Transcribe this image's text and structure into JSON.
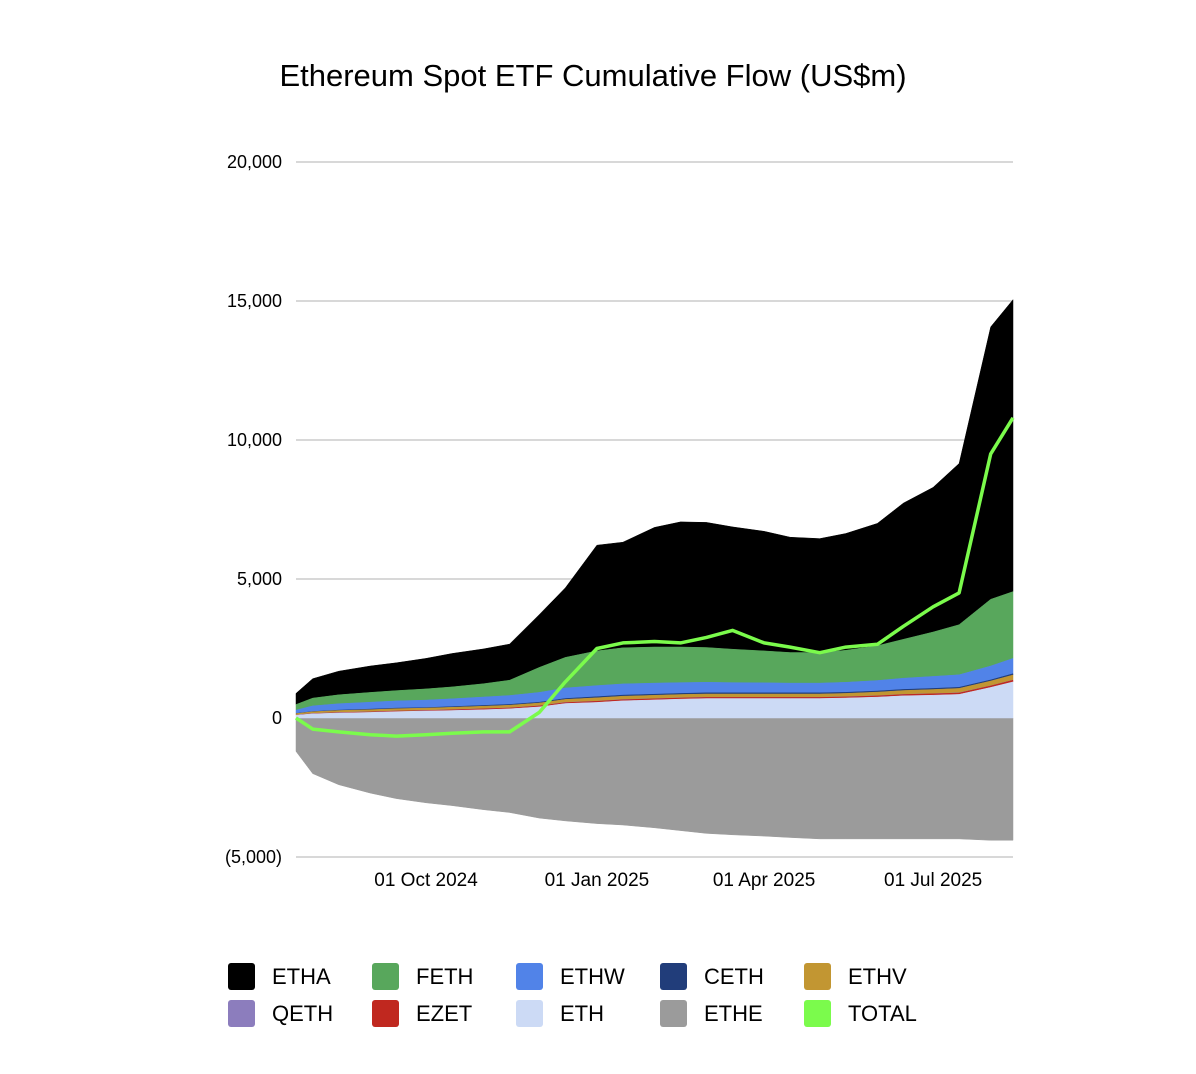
{
  "chart_data": {
    "type": "area",
    "stacked": true,
    "title": "Ethereum Spot ETF Cumulative Flow (US$m)",
    "xlabel": "",
    "ylabel": "",
    "ylim": [
      -5000,
      20000
    ],
    "xlim": [
      "2024-07-23",
      "2025-08-13"
    ],
    "yticks": [
      {
        "value": 20000,
        "label": "20,000"
      },
      {
        "value": 15000,
        "label": "15,000"
      },
      {
        "value": 10000,
        "label": "10,000"
      },
      {
        "value": 5000,
        "label": "5,000"
      },
      {
        "value": 0,
        "label": "0"
      },
      {
        "value": -5000,
        "label": "(5,000)"
      }
    ],
    "xticks": [
      {
        "date": "2024-10-01",
        "label": "01 Oct 2024"
      },
      {
        "date": "2025-01-01",
        "label": "01 Jan 2025"
      },
      {
        "date": "2025-04-01",
        "label": "01 Apr 2025"
      },
      {
        "date": "2025-07-01",
        "label": "01 Jul 2025"
      }
    ],
    "grid": true,
    "legend_position": "bottom",
    "x": [
      "2024-07-23",
      "2024-08-01",
      "2024-08-15",
      "2024-09-01",
      "2024-09-15",
      "2024-10-01",
      "2024-10-15",
      "2024-11-01",
      "2024-11-15",
      "2024-12-01",
      "2024-12-15",
      "2025-01-01",
      "2025-01-15",
      "2025-02-01",
      "2025-02-15",
      "2025-03-01",
      "2025-03-15",
      "2025-04-01",
      "2025-04-15",
      "2025-05-01",
      "2025-05-15",
      "2025-06-01",
      "2025-06-15",
      "2025-07-01",
      "2025-07-15",
      "2025-08-01",
      "2025-08-13"
    ],
    "series": [
      {
        "name": "ETH",
        "color": "#ccdaf5",
        "values": [
          100,
          150,
          180,
          200,
          230,
          250,
          270,
          300,
          330,
          400,
          520,
          560,
          620,
          650,
          680,
          700,
          700,
          700,
          700,
          700,
          720,
          750,
          800,
          820,
          850,
          1100,
          1300
        ]
      },
      {
        "name": "EZET",
        "color": "#c0281f",
        "values": [
          5,
          10,
          15,
          20,
          20,
          20,
          25,
          30,
          30,
          35,
          35,
          40,
          40,
          40,
          40,
          40,
          40,
          40,
          40,
          40,
          40,
          45,
          45,
          50,
          50,
          55,
          60
        ]
      },
      {
        "name": "QETH",
        "color": "#8c7dbd",
        "values": [
          5,
          5,
          5,
          5,
          5,
          5,
          5,
          5,
          5,
          5,
          5,
          5,
          5,
          5,
          5,
          5,
          5,
          5,
          5,
          5,
          5,
          5,
          5,
          5,
          5,
          5,
          5
        ]
      },
      {
        "name": "ETHV",
        "color": "#c29632",
        "values": [
          50,
          60,
          70,
          75,
          80,
          80,
          85,
          90,
          95,
          100,
          110,
          120,
          120,
          120,
          120,
          120,
          120,
          120,
          120,
          120,
          120,
          130,
          140,
          150,
          160,
          170,
          180
        ]
      },
      {
        "name": "CETH",
        "color": "#213d7a",
        "values": [
          5,
          10,
          15,
          20,
          20,
          20,
          25,
          30,
          30,
          30,
          30,
          40,
          40,
          40,
          40,
          40,
          40,
          40,
          40,
          40,
          40,
          40,
          40,
          40,
          40,
          40,
          50
        ]
      },
      {
        "name": "ETHW",
        "color": "#5183e8",
        "values": [
          120,
          200,
          230,
          250,
          260,
          270,
          280,
          300,
          320,
          350,
          380,
          400,
          400,
          400,
          390,
          380,
          370,
          360,
          350,
          350,
          360,
          380,
          400,
          430,
          450,
          500,
          550
        ]
      },
      {
        "name": "FETH",
        "color": "#58a75c",
        "values": [
          200,
          280,
          320,
          350,
          370,
          400,
          430,
          480,
          550,
          900,
          1100,
          1250,
          1300,
          1300,
          1280,
          1250,
          1200,
          1150,
          1100,
          1100,
          1150,
          1250,
          1400,
          1600,
          1800,
          2400,
          2400
        ]
      },
      {
        "name": "ETHA",
        "color": "#000000",
        "values": [
          400,
          700,
          850,
          950,
          1000,
          1100,
          1200,
          1250,
          1300,
          1900,
          2500,
          3800,
          3800,
          4300,
          4500,
          4500,
          4400,
          4300,
          4150,
          4100,
          4200,
          4400,
          4900,
          5200,
          5800,
          9800,
          10500
        ]
      },
      {
        "name": "ETHE",
        "color": "#9b9b9b",
        "values": [
          -1200,
          -2000,
          -2400,
          -2700,
          -2900,
          -3050,
          -3150,
          -3300,
          -3400,
          -3600,
          -3700,
          -3800,
          -3850,
          -3950,
          -4050,
          -4150,
          -4200,
          -4250,
          -4300,
          -4350,
          -4350,
          -4350,
          -4350,
          -4350,
          -4350,
          -4400,
          -4400
        ]
      },
      {
        "name": "TOTAL",
        "color": "#7bfb4c",
        "type": "line",
        "values": [
          0,
          -400,
          -500,
          -600,
          -650,
          -600,
          -550,
          -500,
          -500,
          200,
          1300,
          2500,
          2700,
          2750,
          2700,
          2900,
          3150,
          2700,
          2550,
          2350,
          2550,
          2650,
          3300,
          4000,
          4500,
          9500,
          10800
        ]
      }
    ]
  }
}
